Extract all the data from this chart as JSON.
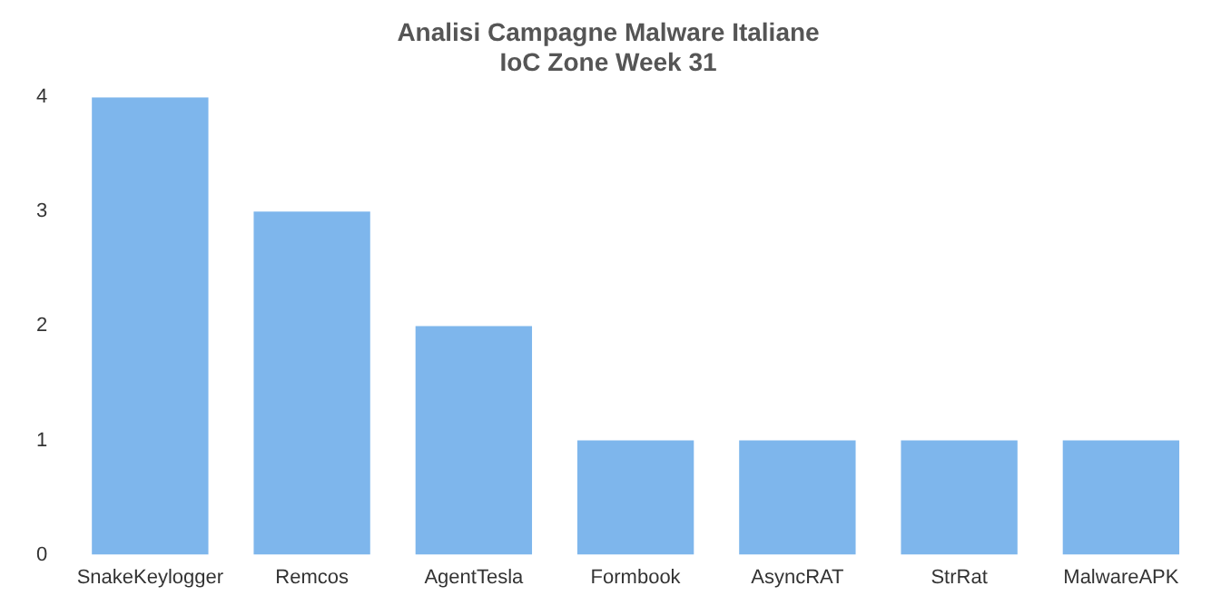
{
  "chart_data": {
    "type": "bar",
    "title": "Analisi Campagne Malware Italiane",
    "subtitle": "IoC Zone Week 31",
    "categories": [
      "SnakeKeylogger",
      "Remcos",
      "AgentTesla",
      "Formbook",
      "AsyncRAT",
      "StrRat",
      "MalwareAPK"
    ],
    "values": [
      4,
      3,
      2,
      1,
      1,
      1,
      1
    ],
    "color": "#7eb6ec",
    "ylim": [
      0,
      4
    ],
    "yticks": [
      0,
      1,
      2,
      3,
      4
    ],
    "grid": false,
    "legend": false
  }
}
